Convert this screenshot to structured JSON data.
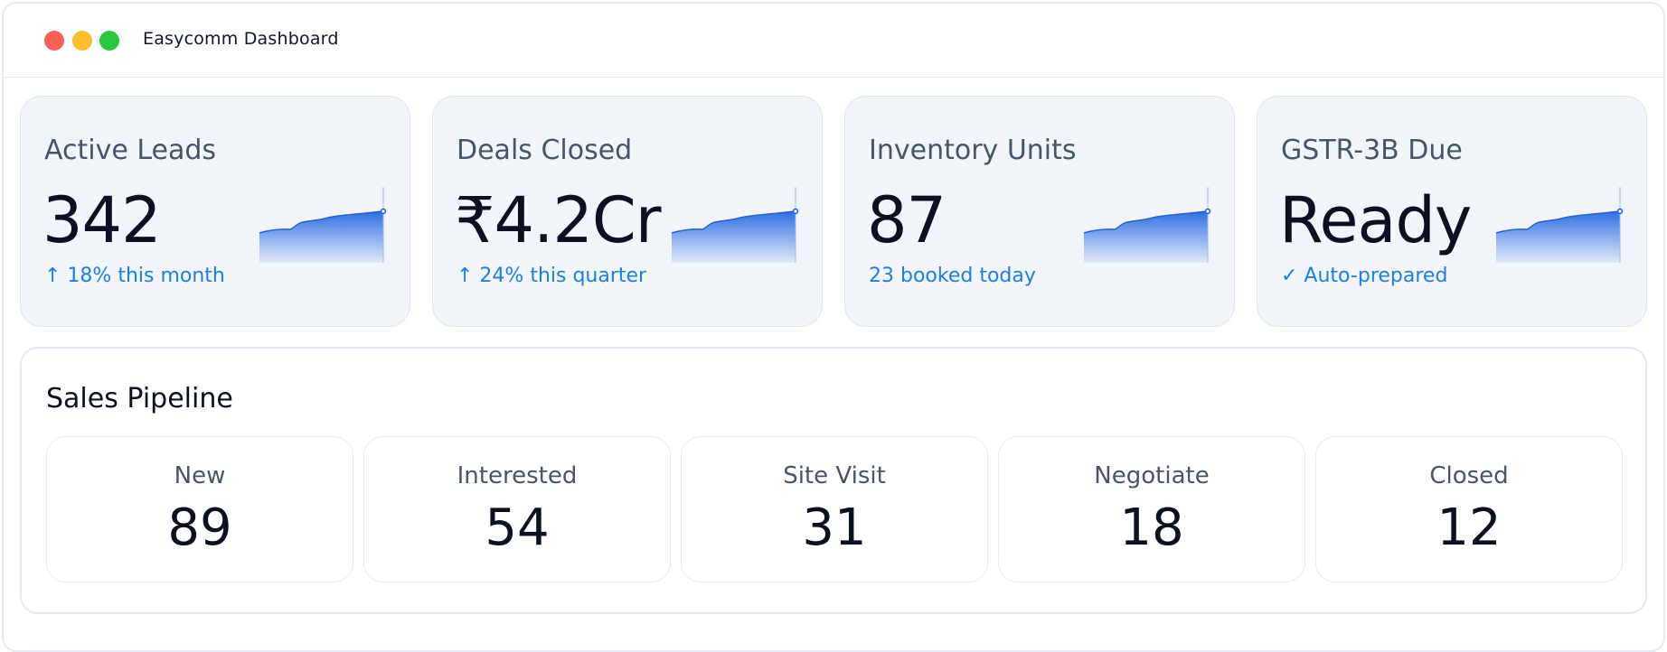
{
  "window": {
    "title": "Easycomm Dashboard"
  },
  "colors": {
    "accent": "#1d7fe6",
    "card_bg": "#f2f6fb",
    "close": "#fe5f57",
    "minimize": "#febc2e",
    "maximize": "#28c840"
  },
  "stats": [
    {
      "label": "Active Leads",
      "value": "342",
      "note": "↑ 18% this month"
    },
    {
      "label": "Deals Closed",
      "value": "₹4.2Cr",
      "note": "↑ 24% this quarter"
    },
    {
      "label": "Inventory Units",
      "value": "87",
      "note": "23 booked today"
    },
    {
      "label": "GSTR-3B Due",
      "value": "Ready",
      "note": "✓ Auto-prepared"
    }
  ],
  "pipeline": {
    "title": "Sales Pipeline",
    "stages": [
      {
        "label": "New",
        "count": "89"
      },
      {
        "label": "Interested",
        "count": "54"
      },
      {
        "label": "Site Visit",
        "count": "31"
      },
      {
        "label": "Negotiate",
        "count": "18"
      },
      {
        "label": "Closed",
        "count": "12"
      }
    ]
  }
}
